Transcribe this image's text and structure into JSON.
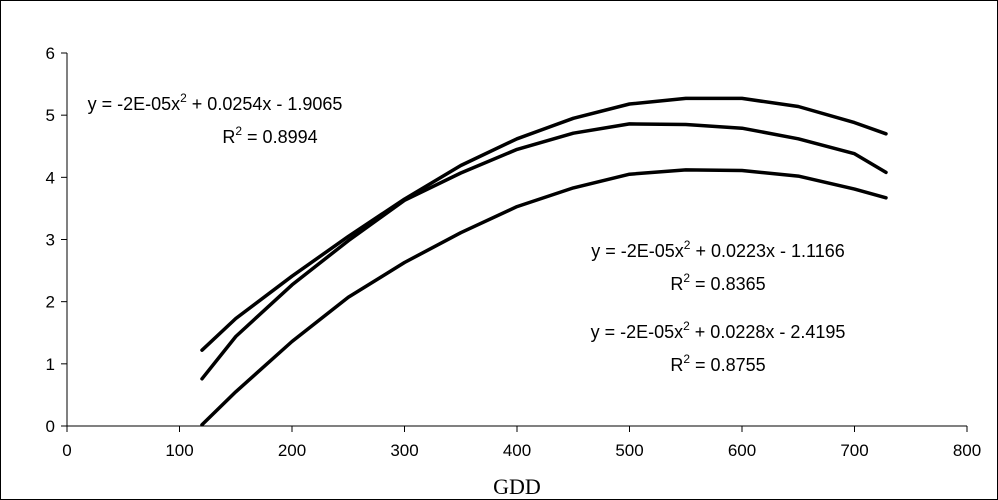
{
  "chart_data": {
    "type": "line",
    "title": "",
    "xlabel": "GDD",
    "ylabel": "",
    "xlim": [
      0,
      800
    ],
    "ylim": [
      0,
      6
    ],
    "xticks": [
      0,
      100,
      200,
      300,
      400,
      500,
      600,
      700,
      800
    ],
    "yticks": [
      0,
      1,
      2,
      3,
      4,
      5,
      6
    ],
    "grid": false,
    "legend": "none",
    "line_color": "#000000",
    "series": [
      {
        "x": [
          120,
          150,
          200,
          250,
          300,
          350,
          400,
          450,
          500,
          550,
          600,
          650,
          700,
          728
        ],
        "values": [
          0.76,
          1.44,
          2.27,
          2.98,
          3.63,
          4.07,
          4.45,
          4.71,
          4.86,
          4.85,
          4.79,
          4.62,
          4.38,
          4.08
        ]
      },
      {
        "x": [
          120,
          150,
          200,
          250,
          300,
          350,
          400,
          450,
          500,
          550,
          600,
          650,
          700,
          728
        ],
        "values": [
          1.22,
          1.73,
          2.41,
          3.05,
          3.65,
          4.19,
          4.62,
          4.95,
          5.18,
          5.27,
          5.27,
          5.14,
          4.88,
          4.7
        ]
      },
      {
        "x": [
          120,
          150,
          200,
          250,
          300,
          350,
          400,
          450,
          500,
          550,
          600,
          650,
          700,
          728
        ],
        "values": [
          0.02,
          0.55,
          1.36,
          2.07,
          2.63,
          3.11,
          3.53,
          3.83,
          4.05,
          4.12,
          4.11,
          4.02,
          3.81,
          3.67
        ]
      }
    ],
    "annotations": [
      {
        "eq_pre": "y = -2E-05x",
        "eq_post": " + 0.0254x - 1.9065",
        "r2": " = 0.8994"
      },
      {
        "eq_pre": "y = -2E-05x",
        "eq_post": " + 0.0223x - 1.1166",
        "r2": " = 0.8365"
      },
      {
        "eq_pre": "y = -2E-05x",
        "eq_post": " + 0.0228x - 2.4195",
        "r2": " = 0.8755"
      }
    ],
    "superscript": "2",
    "r_symbol": "R"
  }
}
